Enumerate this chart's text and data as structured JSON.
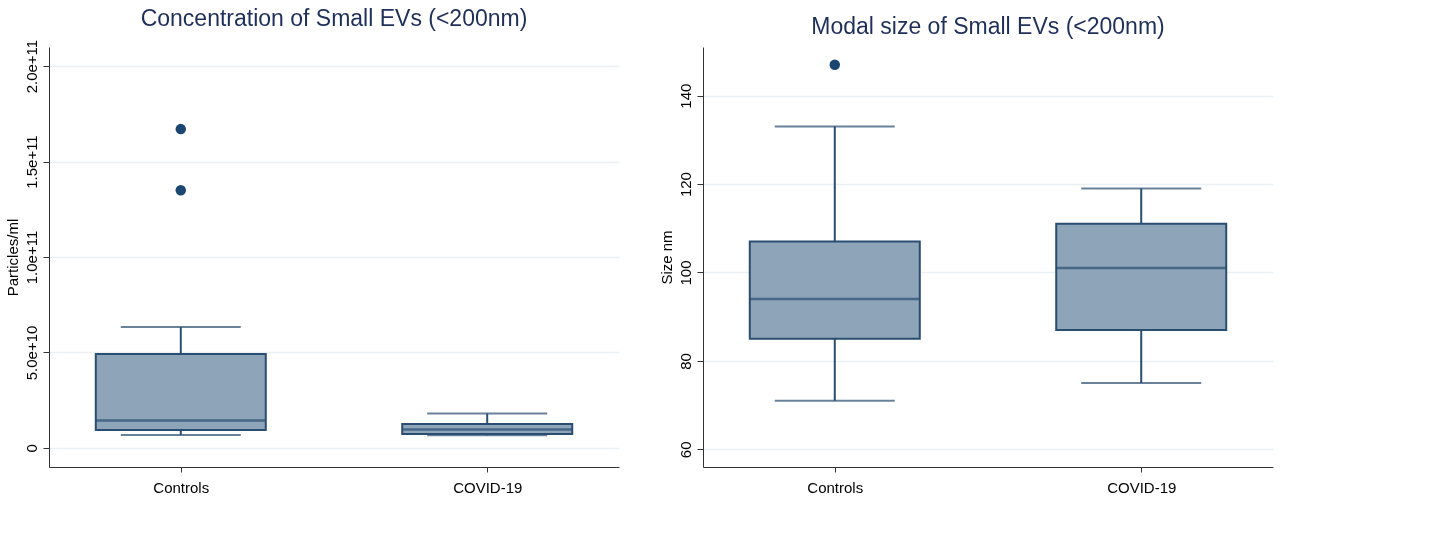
{
  "chart_data": [
    {
      "type": "box",
      "title": "Concentration of Small EVs (<200nm)",
      "ylabel": "Particles/ml",
      "categories": [
        "Controls",
        "COVID-19"
      ],
      "color": "#8ea4b8",
      "boxes": [
        {
          "low": 6800000000.0,
          "q1": 9400000000.0,
          "median": 14300000000.0,
          "q3": 49200000000.0,
          "high": 63300000000.0,
          "outliers": [
            135000000000.0,
            167000000000.0
          ]
        },
        {
          "low": 6600000000.0,
          "q1": 7300000000.0,
          "median": 9700000000.0,
          "q3": 12500000000.0,
          "high": 18000000000.0
        }
      ],
      "ylim": [
        -10000000000.0,
        210000000000.0
      ],
      "yticks": [
        0,
        {
          "value": 50000000000.0,
          "label": "5.0e+10"
        },
        {
          "value": 100000000000.0,
          "label": "1.0e+11"
        },
        {
          "value": 150000000000.0,
          "label": "1.5e+11"
        },
        {
          "value": 200000000000.0,
          "label": "2.0e+11"
        }
      ],
      "grid": "y"
    },
    {
      "type": "box",
      "title": "Modal size of Small EVs (<200nm)",
      "ylabel": "Size nm",
      "categories": [
        "Controls",
        "COVID-19"
      ],
      "color": "#8ea4b8",
      "boxes": [
        {
          "low": 71,
          "q1": 85,
          "median": 94,
          "q3": 107,
          "high": 133,
          "outliers": [
            147
          ]
        },
        {
          "low": 75,
          "q1": 87,
          "median": 101,
          "q3": 111,
          "high": 119
        }
      ],
      "ylim": [
        56,
        151
      ],
      "yticks": [
        60,
        80,
        100,
        120,
        140
      ],
      "grid": "y"
    }
  ]
}
